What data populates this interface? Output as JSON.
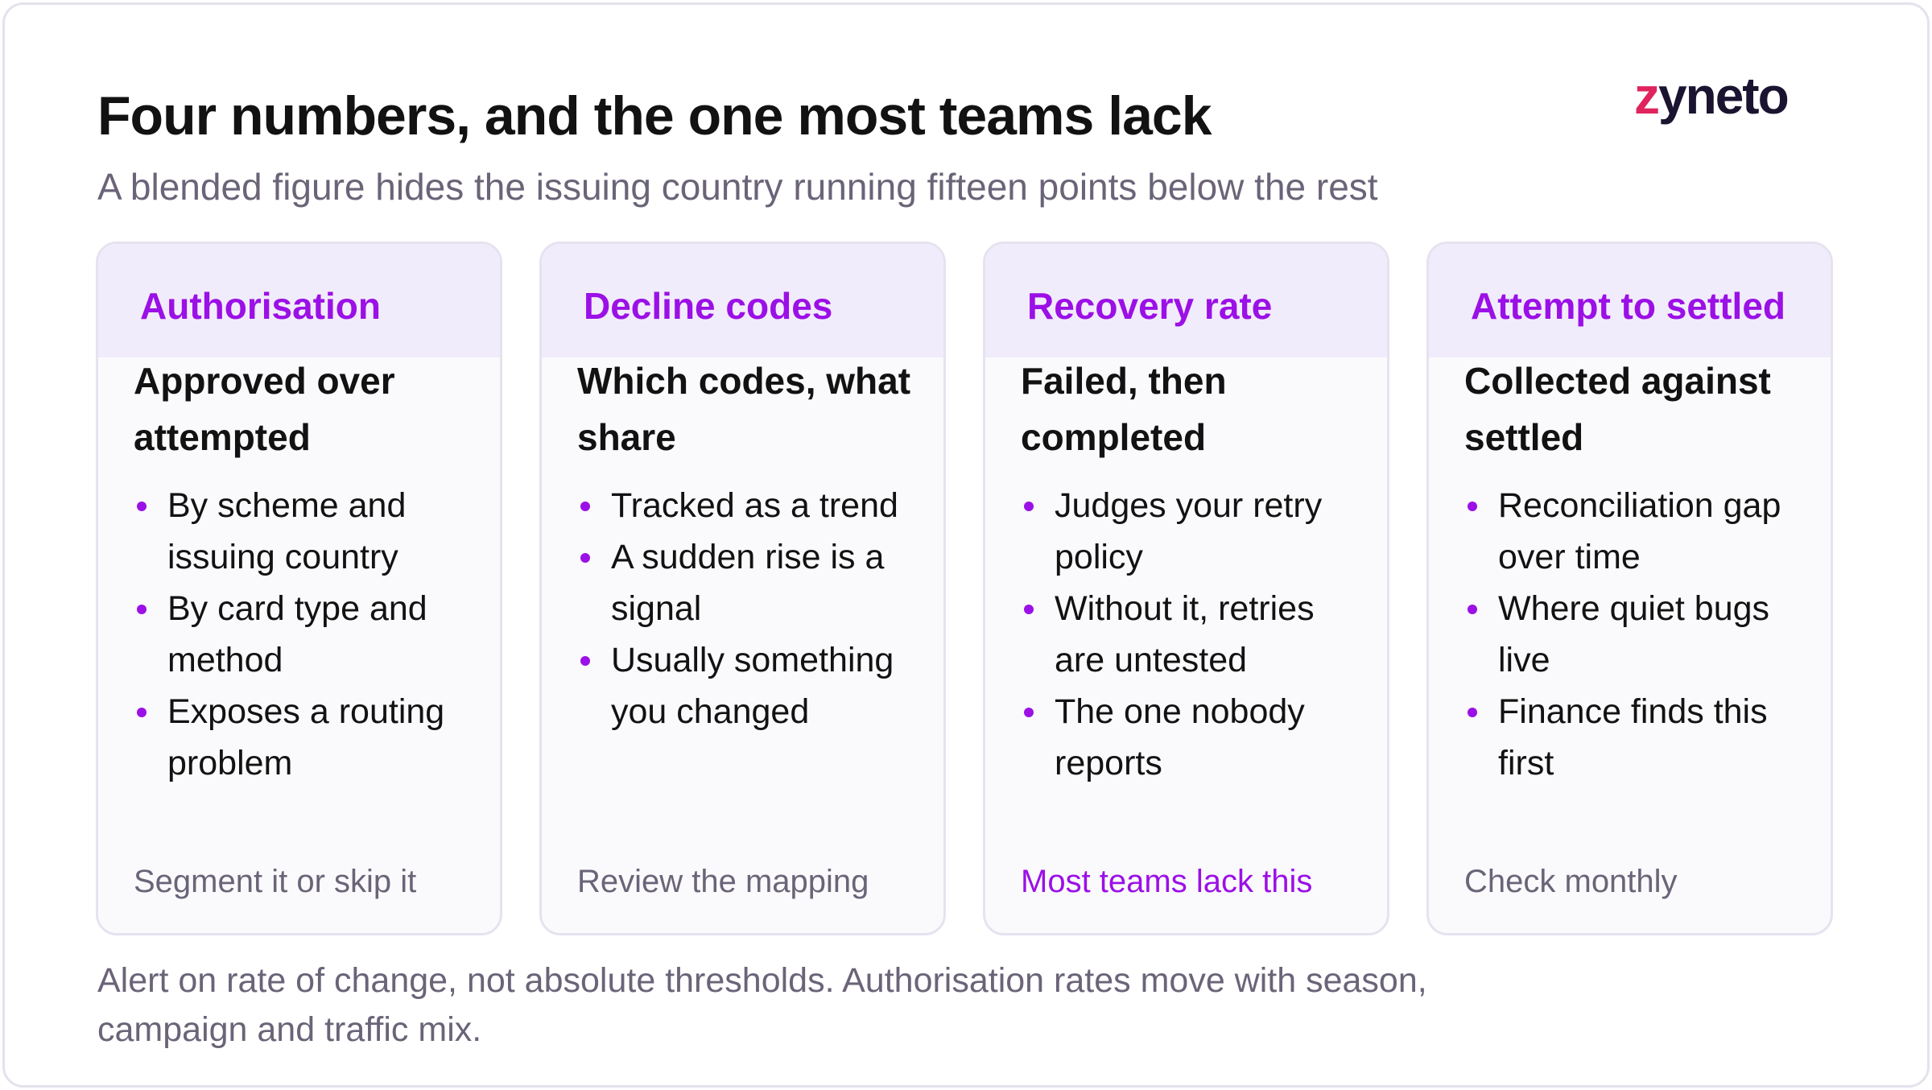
{
  "header": {
    "title": "Four numbers, and the one most teams lack",
    "subtitle": "A blended figure hides the issuing country running fifteen points below the rest",
    "logo": "zyneto"
  },
  "cards": [
    {
      "label": "Authorisation",
      "title": "Approved over attempted",
      "bullets": [
        "By scheme and issuing country",
        "By card type and method",
        "Exposes a routing problem"
      ],
      "footer": "Segment it or skip it"
    },
    {
      "label": "Decline codes",
      "title": "Which codes, what share",
      "bullets": [
        "Tracked as a trend",
        "A sudden rise is a signal",
        "Usually something you changed"
      ],
      "footer": "Review the mapping"
    },
    {
      "label": "Recovery rate",
      "title": "Failed, then completed",
      "bullets": [
        "Judges your retry policy",
        "Without it, retries are untested",
        "The one nobody reports"
      ],
      "footer": "Most teams lack this"
    },
    {
      "label": "Attempt to settled",
      "title": "Collected against settled",
      "bullets": [
        "Reconciliation gap over time",
        "Where quiet bugs live",
        "Finance finds this first"
      ],
      "footer": "Check monthly"
    }
  ],
  "note": "Alert on rate of change, not absolute thresholds. Authorisation rates move with season, campaign and traffic mix."
}
